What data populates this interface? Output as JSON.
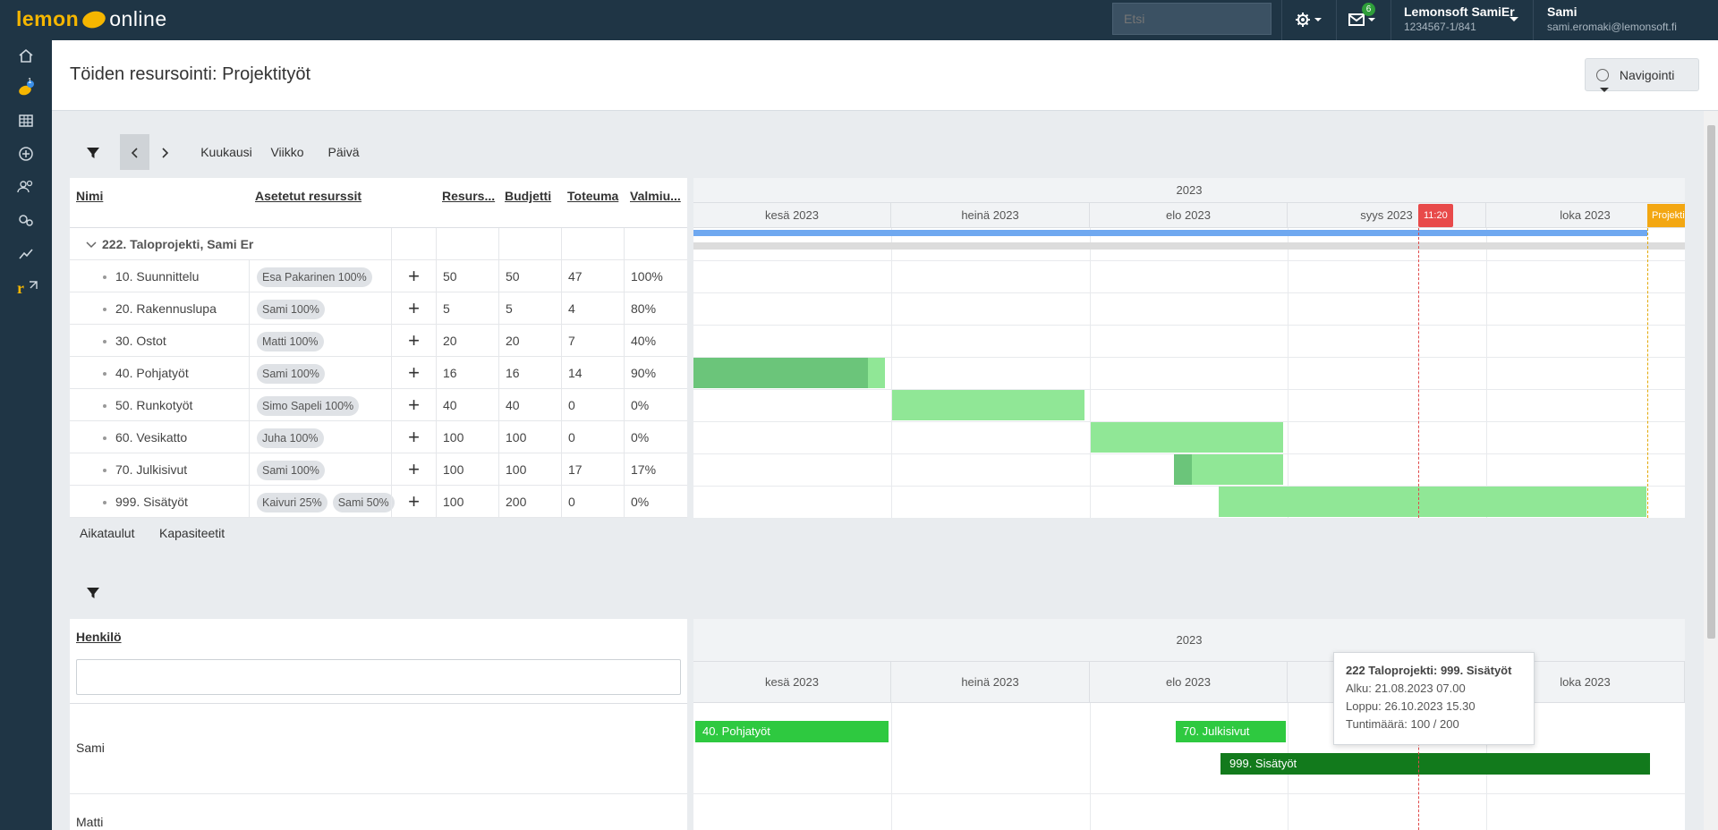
{
  "topbar": {
    "logo_left": "lemon",
    "logo_right": "online",
    "search_placeholder": "Etsi",
    "mail_badge": "6",
    "company_name": "Lemonsoft SamiEr",
    "company_id": "1234567-1/841",
    "user_name": "Sami",
    "user_email": "sami.eromaki@lemonsoft.fi"
  },
  "sidebar": {
    "items": [
      "home-icon",
      "lemon-icon",
      "grid-icon",
      "plus-circle-icon",
      "users-icon",
      "settings-icon",
      "chart-icon",
      "external-link-icon"
    ],
    "lemon_badge": "1"
  },
  "header": {
    "title": "Töiden resursointi: Projektityöt",
    "nav_button": "Navigointi"
  },
  "toolbar": {
    "month": "Kuukausi",
    "week": "Viikko",
    "day": "Päivä"
  },
  "grid": {
    "columns": [
      "Nimi",
      "Asetetut resurssit",
      "Resurs...",
      "Budjetti",
      "Toteuma",
      "Valmiu..."
    ],
    "project_row": "222. Taloprojekti, Sami Er",
    "rows": [
      {
        "name": "10. Suunnittelu",
        "resources": [
          "Esa Pakarinen 100%"
        ],
        "res": "50",
        "budget": "50",
        "actual": "47",
        "ready": "100%"
      },
      {
        "name": "20. Rakennuslupa",
        "resources": [
          "Sami 100%"
        ],
        "res": "5",
        "budget": "5",
        "actual": "4",
        "ready": "80%"
      },
      {
        "name": "30. Ostot",
        "resources": [
          "Matti 100%"
        ],
        "res": "20",
        "budget": "20",
        "actual": "7",
        "ready": "40%"
      },
      {
        "name": "40. Pohjatyöt",
        "resources": [
          "Sami 100%"
        ],
        "res": "16",
        "budget": "16",
        "actual": "14",
        "ready": "90%"
      },
      {
        "name": "50. Runkotyöt",
        "resources": [
          "Simo Sapeli 100%"
        ],
        "res": "40",
        "budget": "40",
        "actual": "0",
        "ready": "0%"
      },
      {
        "name": "60. Vesikatto",
        "resources": [
          "Juha 100%"
        ],
        "res": "100",
        "budget": "100",
        "actual": "0",
        "ready": "0%"
      },
      {
        "name": "70. Julkisivut",
        "resources": [
          "Sami 100%"
        ],
        "res": "100",
        "budget": "100",
        "actual": "17",
        "ready": "17%"
      },
      {
        "name": "999. Sisätyöt",
        "resources": [
          "Kaivuri 25%",
          "Sami 50%"
        ],
        "res": "100",
        "budget": "200",
        "actual": "0",
        "ready": "0%"
      }
    ]
  },
  "gantt": {
    "year": "2023",
    "months": [
      "kesä 2023",
      "heinä 2023",
      "elo 2023",
      "syys 2023",
      "loka 2023"
    ],
    "today_label": "11:20",
    "project_tag": "Projekti"
  },
  "lower_tabs": {
    "schedules": "Aikataulut",
    "capacities": "Kapasiteetit"
  },
  "people": {
    "header": "Henkilö",
    "names": [
      "Sami",
      "Matti"
    ],
    "bars": [
      "40. Pohjatyöt",
      "70. Julkisivut",
      "999. Sisätyöt"
    ]
  },
  "tooltip": {
    "title": "222 Taloprojekti: 999. Sisätyöt",
    "start": "Alku: 21.08.2023 07.00",
    "end": "Loppu: 26.10.2023 15.30",
    "hours": "Tuntimäärä: 100 / 200"
  }
}
